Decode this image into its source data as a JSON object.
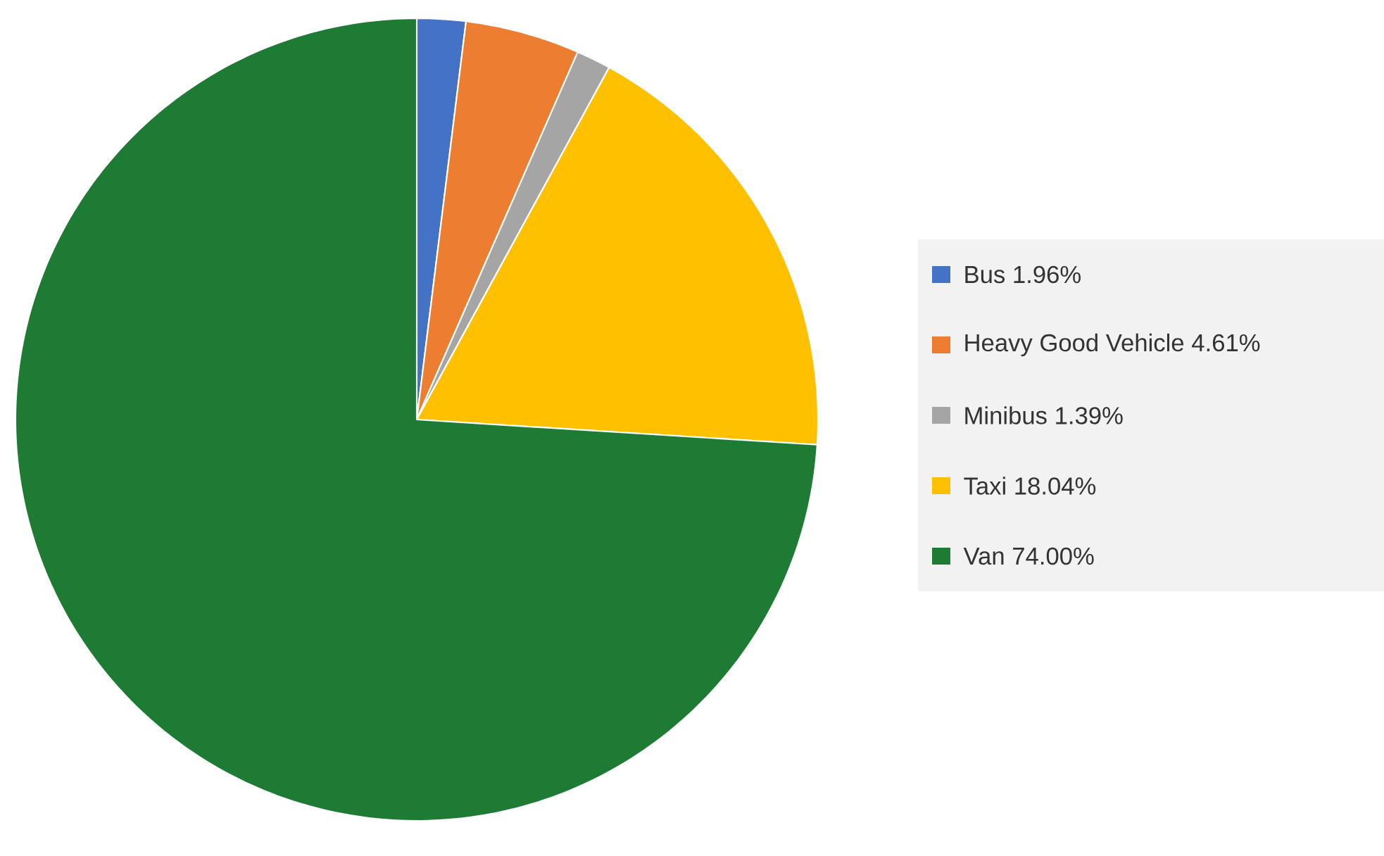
{
  "chart_data": {
    "type": "pie",
    "categories": [
      "Bus",
      "Heavy Good Vehicle",
      "Minibus",
      "Taxi",
      "Van"
    ],
    "values": [
      1.96,
      4.61,
      1.39,
      18.04,
      74.0
    ],
    "value_labels": [
      "1.96%",
      "4.61%",
      "1.39%",
      "18.04%",
      "74.00%"
    ],
    "colors": [
      "#4472c4",
      "#ed7d31",
      "#a5a5a5",
      "#ffc000",
      "#1e7b34"
    ],
    "legend": "right"
  }
}
